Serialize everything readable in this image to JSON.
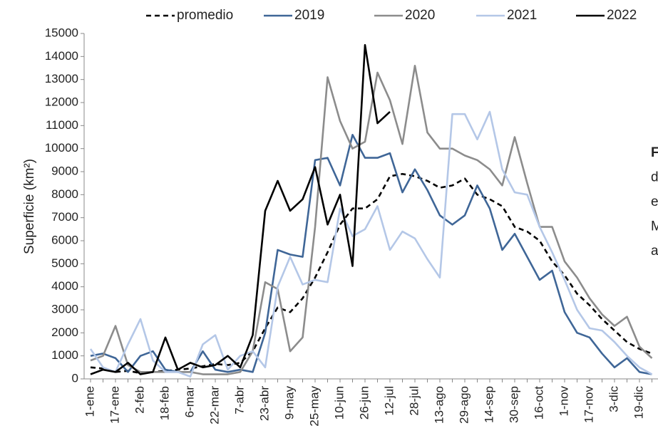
{
  "chart_data": {
    "type": "line",
    "ylabel": "Superficie (km²)",
    "side_text": [
      "F",
      "d",
      "e",
      "M",
      "a"
    ],
    "categories": [
      "1-ene",
      null,
      "17-ene",
      null,
      "2-feb",
      null,
      "18-feb",
      null,
      "6-mar",
      null,
      "22-mar",
      null,
      "7-abr",
      null,
      "23-abr",
      null,
      "9-may",
      null,
      "25-may",
      null,
      "10-jun",
      null,
      "26-jun",
      null,
      "12-jul",
      null,
      "28-jul",
      null,
      "13-ago",
      null,
      "29-ago",
      null,
      "14-sep",
      null,
      "30-sep",
      null,
      "16-oct",
      null,
      "1-nov",
      null,
      "17-nov",
      null,
      "3-dic",
      null,
      "19-dic",
      null
    ],
    "ylim": [
      0,
      15000
    ],
    "yticks": [
      0,
      1000,
      2000,
      3000,
      4000,
      5000,
      6000,
      7000,
      8000,
      9000,
      10000,
      11000,
      12000,
      13000,
      14000,
      15000
    ],
    "grid": false,
    "legend": "top",
    "series": [
      {
        "name": "promedio",
        "color": "#000000",
        "dashed": true,
        "values": [
          500,
          450,
          300,
          350,
          250,
          300,
          350,
          400,
          450,
          550,
          650,
          600,
          700,
          1200,
          2200,
          3100,
          2900,
          3500,
          4400,
          5500,
          6700,
          7400,
          7400,
          7800,
          8800,
          8900,
          8800,
          8600,
          8300,
          8400,
          8700,
          8000,
          7800,
          7500,
          6600,
          6400,
          6000,
          5100,
          4500,
          3700,
          3200,
          2600,
          2100,
          1600,
          1300,
          1100
        ]
      },
      {
        "name": "2019",
        "color": "#3f6697",
        "values": [
          1000,
          1100,
          900,
          300,
          1000,
          1200,
          400,
          300,
          300,
          1200,
          400,
          300,
          400,
          300,
          2000,
          5600,
          5400,
          5300,
          9500,
          9600,
          8400,
          10600,
          9600,
          9600,
          9800,
          8100,
          9100,
          8200,
          7100,
          6700,
          7100,
          8400,
          7400,
          5600,
          6300,
          5300,
          4300,
          4700,
          2900,
          2000,
          1800,
          1100,
          500,
          900,
          300,
          200
        ]
      },
      {
        "name": "2020",
        "color": "#8c8c8c",
        "values": [
          800,
          1000,
          2300,
          600,
          300,
          300,
          300,
          300,
          300,
          200,
          200,
          200,
          300,
          1200,
          4200,
          3900,
          1200,
          1800,
          6600,
          13100,
          11200,
          10000,
          10300,
          13300,
          12100,
          10200,
          13600,
          10700,
          10000,
          10000,
          9700,
          9500,
          9100,
          8400,
          10500,
          8500,
          6600,
          6600,
          5100,
          4400,
          3500,
          2800,
          2300,
          2700,
          1400,
          900
        ]
      },
      {
        "name": "2021",
        "color": "#b4c7e7",
        "values": [
          1300,
          500,
          300,
          1500,
          2600,
          800,
          300,
          300,
          100,
          1500,
          1900,
          400,
          1000,
          1200,
          500,
          4000,
          5300,
          4100,
          4300,
          4200,
          7400,
          6200,
          6500,
          7500,
          5600,
          6400,
          6100,
          5200,
          4400,
          11500,
          11500,
          10400,
          11600,
          9100,
          8100,
          8000,
          6600,
          5500,
          4300,
          3000,
          2200,
          2100,
          1600,
          1000,
          500,
          200
        ]
      },
      {
        "name": "2022",
        "color": "#000000",
        "values": [
          200,
          400,
          300,
          700,
          200,
          300,
          1800,
          400,
          700,
          500,
          600,
          1000,
          500,
          1900,
          7300,
          8600,
          7300,
          7800,
          9200,
          6700,
          8000,
          4900,
          14500,
          11100,
          11600,
          null,
          null,
          null,
          null,
          null,
          null,
          null,
          null,
          null,
          null,
          null,
          null,
          null,
          null,
          null,
          null,
          null,
          null,
          null,
          null,
          null
        ]
      }
    ]
  }
}
